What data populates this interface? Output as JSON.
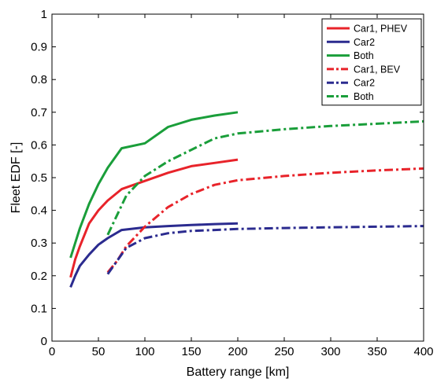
{
  "chart_data": {
    "type": "line",
    "title": "",
    "xlabel": "Battery range [km]",
    "ylabel": "Fleet EDF [-]",
    "xlim": [
      0,
      400
    ],
    "ylim": [
      0,
      1
    ],
    "xticks": [
      0,
      50,
      100,
      150,
      200,
      250,
      300,
      350,
      400
    ],
    "yticks": [
      0,
      0.1,
      0.2,
      0.3,
      0.4,
      0.5,
      0.6,
      0.7,
      0.8,
      0.9,
      1
    ],
    "xtick_labels": [
      "0",
      "50",
      "100",
      "150",
      "200",
      "250",
      "300",
      "350",
      "400"
    ],
    "ytick_labels": [
      "0",
      "0.1",
      "0.2",
      "0.3",
      "0.4",
      "0.5",
      "0.6",
      "0.7",
      "0.8",
      "0.9",
      "1"
    ],
    "grid": false,
    "legend_position": "top-right",
    "series": [
      {
        "name": "Car1, PHEV",
        "color": "#e8232a",
        "style": "solid",
        "x": [
          20,
          25,
          30,
          40,
          50,
          60,
          75,
          100,
          125,
          150,
          175,
          200
        ],
        "y": [
          0.195,
          0.25,
          0.29,
          0.36,
          0.4,
          0.43,
          0.465,
          0.49,
          0.515,
          0.535,
          0.545,
          0.555
        ]
      },
      {
        "name": "Car2",
        "color": "#2b2b8f",
        "style": "solid",
        "x": [
          20,
          25,
          30,
          40,
          50,
          60,
          75,
          100,
          125,
          150,
          175,
          200
        ],
        "y": [
          0.165,
          0.2,
          0.23,
          0.265,
          0.295,
          0.315,
          0.34,
          0.348,
          0.352,
          0.355,
          0.358,
          0.36
        ]
      },
      {
        "name": "Both",
        "color": "#1a9e3a",
        "style": "solid",
        "x": [
          20,
          25,
          30,
          40,
          50,
          60,
          75,
          100,
          125,
          150,
          175,
          200
        ],
        "y": [
          0.255,
          0.3,
          0.345,
          0.42,
          0.48,
          0.53,
          0.59,
          0.605,
          0.655,
          0.677,
          0.69,
          0.7
        ]
      },
      {
        "name": "Car1, BEV",
        "color": "#e8232a",
        "style": "dashdot",
        "x": [
          60,
          70,
          80,
          100,
          125,
          150,
          175,
          200,
          250,
          300,
          350,
          400
        ],
        "y": [
          0.21,
          0.245,
          0.29,
          0.35,
          0.41,
          0.45,
          0.478,
          0.492,
          0.505,
          0.515,
          0.522,
          0.528
        ]
      },
      {
        "name": "Car2",
        "color": "#2b2b8f",
        "style": "dashdot",
        "x": [
          60,
          70,
          80,
          100,
          125,
          150,
          175,
          200,
          250,
          300,
          350,
          400
        ],
        "y": [
          0.205,
          0.245,
          0.285,
          0.315,
          0.33,
          0.337,
          0.34,
          0.343,
          0.346,
          0.348,
          0.35,
          0.352
        ]
      },
      {
        "name": "Both",
        "color": "#1a9e3a",
        "style": "dashdot",
        "x": [
          60,
          70,
          80,
          100,
          125,
          150,
          175,
          200,
          250,
          300,
          350,
          400
        ],
        "y": [
          0.325,
          0.385,
          0.445,
          0.505,
          0.55,
          0.585,
          0.62,
          0.635,
          0.648,
          0.658,
          0.665,
          0.672
        ]
      }
    ]
  }
}
